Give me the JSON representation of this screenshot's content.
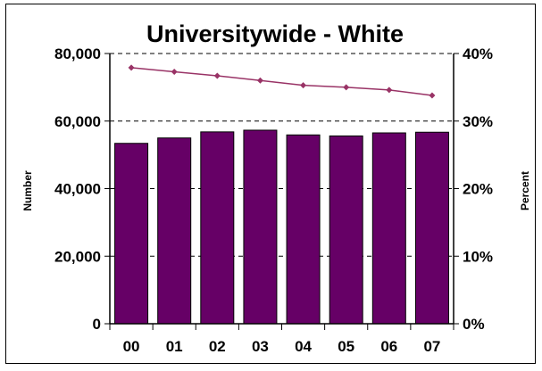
{
  "chart_data": {
    "type": "bar",
    "title": "Universitywide - White",
    "xlabel": "",
    "ylabel": "Number",
    "y2label": "Percent",
    "categories": [
      "00",
      "01",
      "02",
      "03",
      "04",
      "05",
      "06",
      "07"
    ],
    "series": [
      {
        "type": "bar",
        "axis": "left",
        "values": [
          53400,
          55000,
          56800,
          57300,
          55900,
          55600,
          56500,
          56700
        ]
      },
      {
        "type": "line",
        "axis": "right",
        "values": [
          0.379,
          0.373,
          0.367,
          0.36,
          0.353,
          0.35,
          0.346,
          0.338
        ]
      }
    ],
    "ylim": [
      0,
      80000
    ],
    "y2lim": [
      0,
      0.4
    ],
    "yticks": [
      "0",
      "20,000",
      "40,000",
      "60,000",
      "80,000"
    ],
    "y2ticks": [
      "0%",
      "10%",
      "20%",
      "30%",
      "40%"
    ],
    "grid": "dashed-horizontal",
    "colors": {
      "bar": "#660066",
      "line": "#993366",
      "grid": "#000000"
    }
  }
}
